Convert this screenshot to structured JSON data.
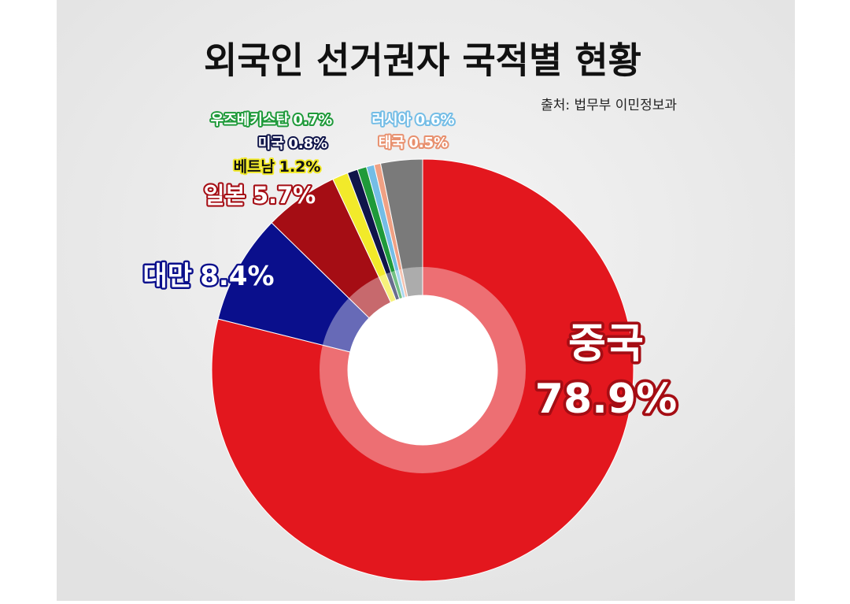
{
  "chart_data": {
    "type": "donut",
    "title": "외국인 선거권자 국적별 현황",
    "source": "출처: 법무부 이민정보과",
    "categories": [
      "중국",
      "대만",
      "일본",
      "베트남",
      "미국",
      "우즈베키스탄",
      "러시아",
      "태국",
      null
    ],
    "values": [
      78.9,
      8.4,
      5.7,
      1.2,
      0.8,
      0.7,
      0.6,
      0.5,
      3.2
    ],
    "value_labels": [
      "78.9%",
      "8.4%",
      "5.7%",
      "1.2%",
      "0.8%",
      "0.7%",
      "0.6%",
      "0.5%",
      null
    ],
    "colors": [
      "#e3171e",
      "#0a0f8c",
      "#a50d14",
      "#f2ea2a",
      "#10154a",
      "#1f9a3a",
      "#74bde6",
      "#f0a184",
      "#7a7a7a"
    ]
  }
}
